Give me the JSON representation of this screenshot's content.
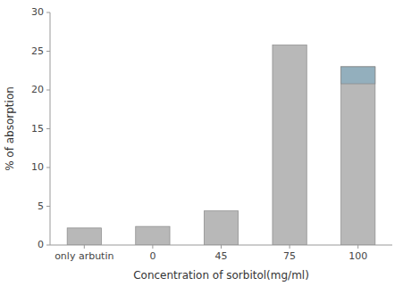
{
  "chart_data": {
    "type": "bar",
    "categories": [
      "only arbutin",
      "0",
      "45",
      "75",
      "100"
    ],
    "values": [
      2.2,
      2.4,
      4.4,
      25.8,
      23.0
    ],
    "color": "#b8b8b8",
    "cap_values": [
      null,
      null,
      null,
      null,
      2.2
    ],
    "cap_color": "#8aadbe",
    "xlabel": "Concentration of sorbitol(mg/ml)",
    "ylabel": "% of absorption",
    "ylim": [
      0,
      30
    ],
    "yticks": [
      0,
      5,
      10,
      15,
      20,
      25,
      30
    ],
    "grid": false
  }
}
